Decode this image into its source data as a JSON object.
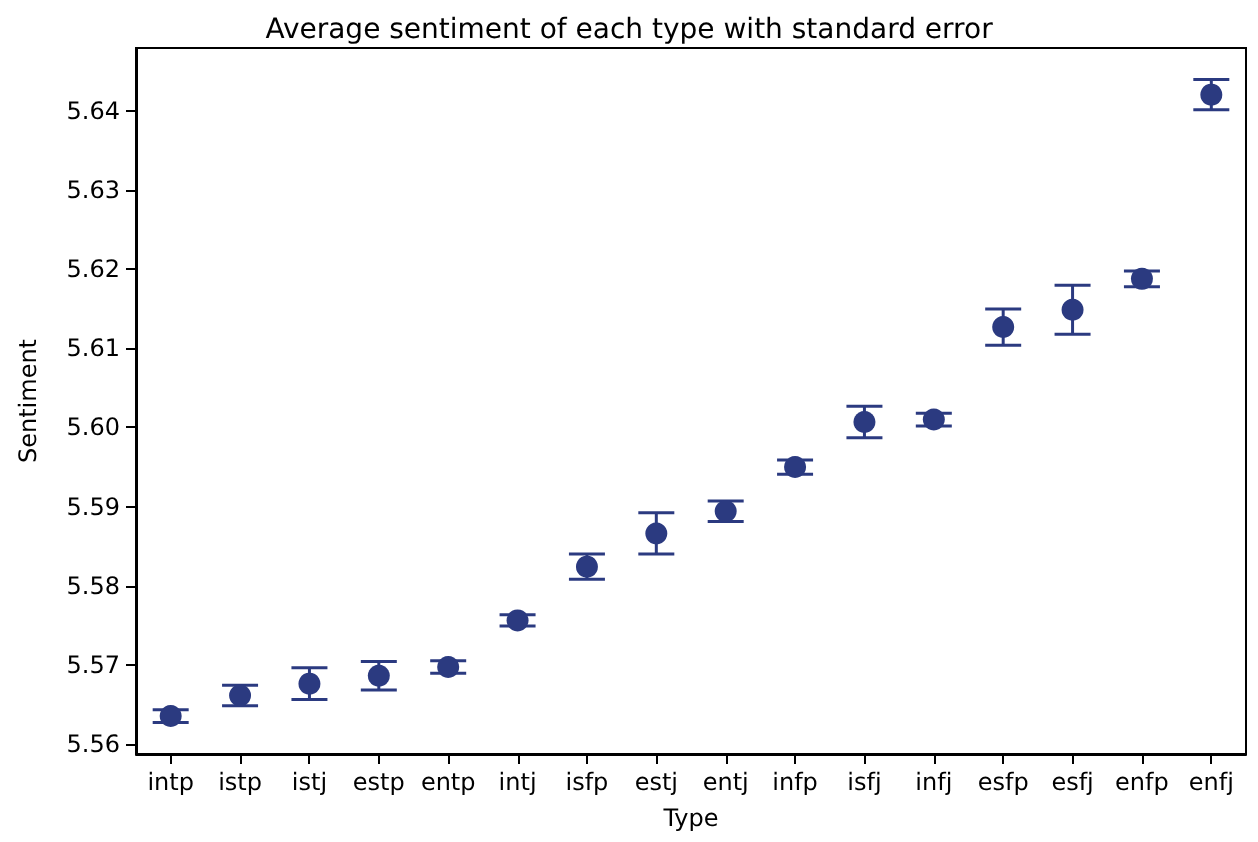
{
  "chart_data": {
    "type": "scatter",
    "title": "Average sentiment of each type with standard error",
    "xlabel": "Type",
    "ylabel": "Sentiment",
    "categories": [
      "intp",
      "istp",
      "istj",
      "estp",
      "entp",
      "intj",
      "isfp",
      "estj",
      "entj",
      "infp",
      "isfj",
      "infj",
      "esfp",
      "esfj",
      "enfp",
      "enfj"
    ],
    "series": [
      {
        "color": "#2b3a80",
        "values": [
          5.5635,
          5.5661,
          5.5676,
          5.5686,
          5.5697,
          5.5756,
          5.5824,
          5.5866,
          5.5894,
          5.595,
          5.6007,
          5.601,
          5.6127,
          5.6149,
          5.6188,
          5.6421
        ],
        "errors": [
          0.0008,
          0.0013,
          0.002,
          0.0018,
          0.0008,
          0.0007,
          0.0016,
          0.0026,
          0.0013,
          0.0009,
          0.002,
          0.0008,
          0.0023,
          0.0031,
          0.001,
          0.0019
        ]
      }
    ],
    "ylim": [
      5.5587,
      5.648
    ],
    "yticks": [
      5.56,
      5.57,
      5.58,
      5.59,
      {
        "value": 5.6,
        "label": "5.60"
      },
      5.61,
      5.62,
      5.63,
      5.64
    ],
    "marker": "circle"
  }
}
